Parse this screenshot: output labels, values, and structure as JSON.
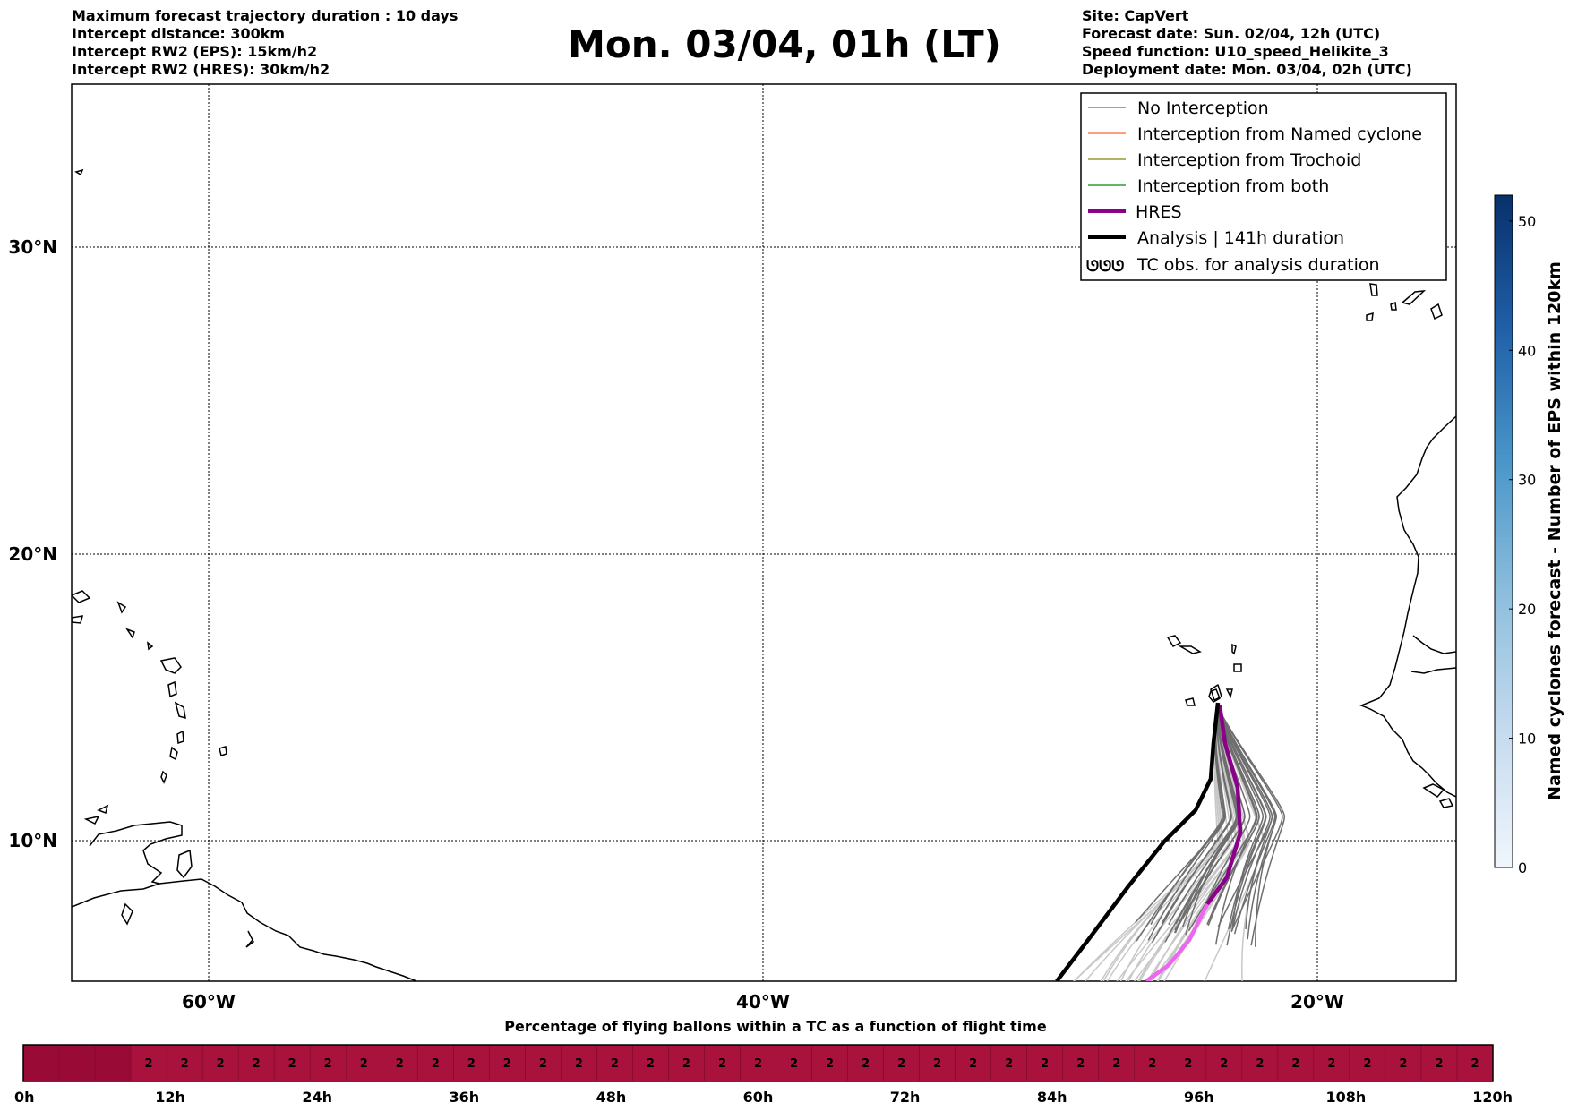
{
  "header": {
    "left_lines": [
      "Maximum forecast trajectory duration : 10 days",
      "Intercept distance: 300km",
      "Intercept RW2 (EPS):  15km/h2",
      "Intercept RW2 (HRES): 30km/h2"
    ],
    "title": "Mon. 03/04, 01h (LT)",
    "right_lines": [
      "Site: CapVert",
      "Forecast date: Sun. 02/04, 12h (UTC)",
      "Speed function: U10_speed_Helikite_3",
      "Deployment date: Mon. 03/04, 02h (UTC)"
    ]
  },
  "map": {
    "lat_labels": [
      "30°N",
      "20°N",
      "10°N"
    ],
    "lon_labels": [
      "60°W",
      "40°W",
      "20°W"
    ]
  },
  "legend": {
    "items": [
      {
        "label": "No Interception",
        "color": "#808080"
      },
      {
        "label": "Interception from Named cyclone",
        "color": "#ff7f50"
      },
      {
        "label": "Interception from Trochoid",
        "color": "#999933"
      },
      {
        "label": "Interception from both",
        "color": "#2ca02c"
      },
      {
        "label": "HRES",
        "color": "#8b008b"
      },
      {
        "label": "Analysis | 141h duration",
        "color": "#000000"
      },
      {
        "label": "TC obs. for analysis duration",
        "symbol": "ᘎᘎᘎ"
      }
    ]
  },
  "colorbar": {
    "label": "Named cyclones forecast - Number of EPS within 120km",
    "ticks": [
      "0",
      "10",
      "20",
      "30",
      "40",
      "50"
    ],
    "min": 0,
    "max": 52,
    "color_low": "#e8f0fa",
    "color_high": "#08306b"
  },
  "timeline": {
    "title": "Percentage of flying ballons within a TC as a function of flight time",
    "ticks": [
      "0h",
      "12h",
      "24h",
      "36h",
      "48h",
      "60h",
      "72h",
      "84h",
      "96h",
      "108h",
      "120h"
    ],
    "values": [
      "",
      "",
      "",
      "2",
      "2",
      "2",
      "2",
      "2",
      "2",
      "2",
      "2",
      "2",
      "2",
      "2",
      "2",
      "2",
      "2",
      "2",
      "2",
      "2",
      "2",
      "2",
      "2",
      "2",
      "2",
      "2",
      "2",
      "2",
      "2",
      "2",
      "2",
      "2",
      "2",
      "2",
      "2",
      "2",
      "2",
      "2",
      "2",
      "2",
      "2"
    ],
    "bar_color": "#a8123c",
    "bar_color_start": "#9a0a37"
  }
}
